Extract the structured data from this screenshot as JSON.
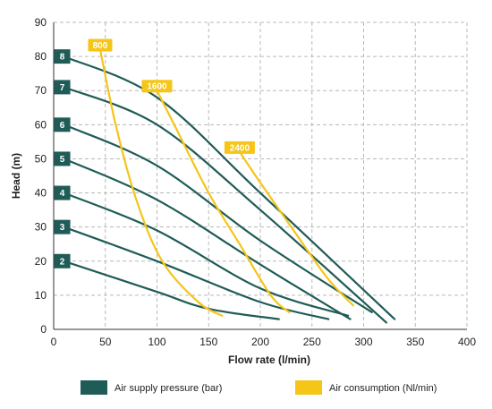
{
  "chart_data": {
    "type": "line",
    "xlabel": "Flow rate (l/min)",
    "ylabel": "Head (m)",
    "xlim": [
      0,
      400
    ],
    "ylim": [
      0,
      90
    ],
    "xticks": [
      "0",
      "50",
      "100",
      "150",
      "200",
      "250",
      "300",
      "350",
      "400"
    ],
    "yticks": [
      "0",
      "10",
      "20",
      "30",
      "40",
      "50",
      "60",
      "70",
      "80",
      "90"
    ],
    "grid": true,
    "legend_position": "bottom",
    "legend": [
      {
        "label": "Air supply pressure (bar)",
        "color": "#1f5c57"
      },
      {
        "label": "Air consumption (Nl/min)",
        "color": "#f5c518"
      }
    ],
    "pressure_color": "#1f5c57",
    "consumption_color": "#f5c518",
    "pressure_series": [
      {
        "label": "8",
        "points": [
          [
            10,
            80
          ],
          [
            100,
            68
          ],
          [
            200,
            40
          ],
          [
            330,
            3
          ]
        ]
      },
      {
        "label": "7",
        "points": [
          [
            10,
            71
          ],
          [
            100,
            60
          ],
          [
            200,
            35
          ],
          [
            322,
            2
          ]
        ]
      },
      {
        "label": "6",
        "points": [
          [
            10,
            60
          ],
          [
            100,
            48
          ],
          [
            200,
            26
          ],
          [
            308,
            5
          ]
        ]
      },
      {
        "label": "5",
        "points": [
          [
            10,
            50
          ],
          [
            100,
            38
          ],
          [
            200,
            19
          ],
          [
            287,
            3
          ]
        ]
      },
      {
        "label": "4",
        "points": [
          [
            10,
            40
          ],
          [
            100,
            29
          ],
          [
            200,
            12
          ],
          [
            285,
            4
          ]
        ]
      },
      {
        "label": "3",
        "points": [
          [
            10,
            30
          ],
          [
            100,
            20
          ],
          [
            200,
            8
          ],
          [
            266,
            3
          ]
        ]
      },
      {
        "label": "2",
        "points": [
          [
            10,
            20
          ],
          [
            100,
            11
          ],
          [
            150,
            6
          ],
          [
            218,
            3
          ]
        ]
      }
    ],
    "consumption_series": [
      {
        "label": "800",
        "points": [
          [
            45,
            82
          ],
          [
            60,
            60
          ],
          [
            80,
            38
          ],
          [
            105,
            20
          ],
          [
            140,
            8
          ],
          [
            163,
            4
          ]
        ]
      },
      {
        "label": "1600",
        "points": [
          [
            100,
            70
          ],
          [
            120,
            58
          ],
          [
            150,
            40
          ],
          [
            180,
            25
          ],
          [
            210,
            10
          ],
          [
            228,
            5
          ]
        ]
      },
      {
        "label": "2400",
        "points": [
          [
            180,
            52
          ],
          [
            200,
            43
          ],
          [
            230,
            30
          ],
          [
            265,
            15
          ],
          [
            290,
            7
          ]
        ]
      }
    ]
  }
}
